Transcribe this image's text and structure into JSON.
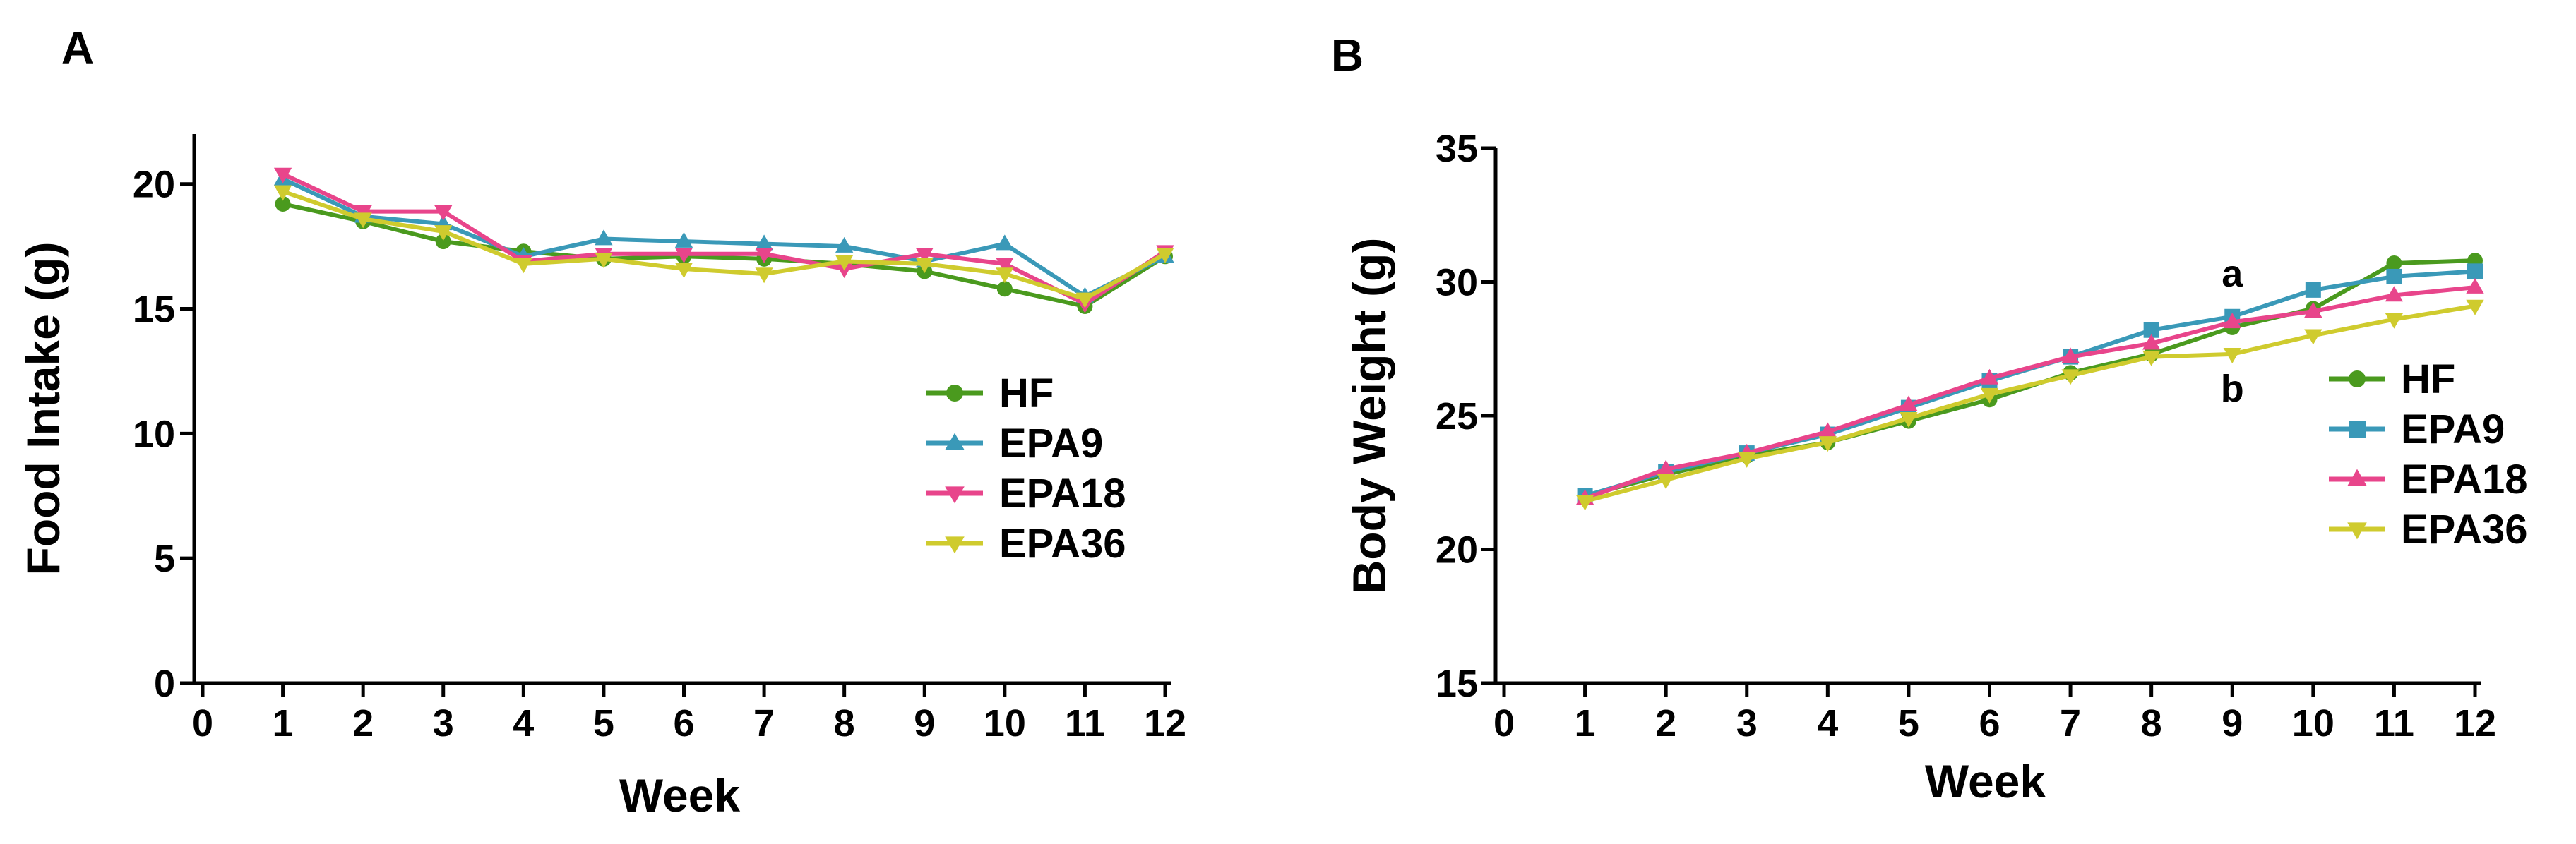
{
  "chart_data": [
    {
      "panel": "A",
      "type": "line",
      "title": "",
      "xlabel": "Week",
      "ylabel": "Food Intake (g)",
      "xlim": [
        0,
        12
      ],
      "ylim": [
        0,
        22
      ],
      "xticks": [
        "0",
        "1",
        "2",
        "3",
        "4",
        "5",
        "6",
        "7",
        "8",
        "9",
        "10",
        "11",
        "12"
      ],
      "yticks": [
        "0",
        "5",
        "10",
        "15",
        "20"
      ],
      "grid": false,
      "legend": "right",
      "x": [
        1,
        2,
        3,
        4,
        5,
        6,
        7,
        8,
        9,
        10,
        11,
        12
      ],
      "series": [
        {
          "name": "HF",
          "color": "#4a9a1e",
          "marker": "circle",
          "values": [
            19.2,
            18.5,
            17.7,
            17.3,
            17.0,
            17.1,
            17.0,
            16.8,
            16.5,
            15.8,
            15.1,
            17.1
          ]
        },
        {
          "name": "EPA9",
          "color": "#3a99b8",
          "marker": "triangle-up",
          "values": [
            20.2,
            18.7,
            18.4,
            17.1,
            17.8,
            17.7,
            17.6,
            17.5,
            16.9,
            17.6,
            15.5,
            17.1
          ]
        },
        {
          "name": "EPA18",
          "color": "#e8458b",
          "marker": "triangle-down",
          "values": [
            20.4,
            18.9,
            18.9,
            16.9,
            17.2,
            17.2,
            17.2,
            16.6,
            17.2,
            16.8,
            15.2,
            17.3
          ]
        },
        {
          "name": "EPA36",
          "color": "#cfcb2e",
          "marker": "triangle-down",
          "values": [
            19.7,
            18.6,
            18.1,
            16.8,
            17.0,
            16.6,
            16.4,
            16.9,
            16.8,
            16.4,
            15.4,
            17.2
          ]
        }
      ],
      "annotations": []
    },
    {
      "panel": "B",
      "type": "line",
      "title": "",
      "xlabel": "Week",
      "ylabel": "Body Weight (g)",
      "xlim": [
        0,
        12
      ],
      "ylim": [
        15,
        35
      ],
      "xticks": [
        "0",
        "1",
        "2",
        "3",
        "4",
        "5",
        "6",
        "7",
        "8",
        "9",
        "10",
        "11",
        "12"
      ],
      "yticks": [
        "15",
        "20",
        "25",
        "30",
        "35"
      ],
      "grid": false,
      "legend": "right",
      "x": [
        1,
        2,
        3,
        4,
        5,
        6,
        7,
        8,
        9,
        10,
        11,
        12
      ],
      "series": [
        {
          "name": "HF",
          "color": "#4a9a1e",
          "marker": "circle",
          "values": [
            22.0,
            22.8,
            23.5,
            24.0,
            24.8,
            25.6,
            26.6,
            27.3,
            28.3,
            29.0,
            30.7,
            30.8
          ]
        },
        {
          "name": "EPA9",
          "color": "#3a99b8",
          "marker": "square",
          "values": [
            22.0,
            22.9,
            23.6,
            24.3,
            25.3,
            26.3,
            27.2,
            28.2,
            28.7,
            29.7,
            30.2,
            30.4
          ]
        },
        {
          "name": "EPA18",
          "color": "#e8458b",
          "marker": "triangle-up",
          "values": [
            21.9,
            23.0,
            23.6,
            24.4,
            25.4,
            26.4,
            27.2,
            27.7,
            28.5,
            28.9,
            29.5,
            29.8
          ]
        },
        {
          "name": "EPA36",
          "color": "#cfcb2e",
          "marker": "triangle-down",
          "values": [
            21.8,
            22.6,
            23.4,
            24.0,
            24.9,
            25.8,
            26.5,
            27.2,
            27.3,
            28.0,
            28.6,
            29.1
          ]
        }
      ],
      "annotations": [
        {
          "text": "a",
          "x": 9,
          "y": 30.3
        },
        {
          "text": "b",
          "x": 9,
          "y": 26.0
        }
      ]
    }
  ]
}
